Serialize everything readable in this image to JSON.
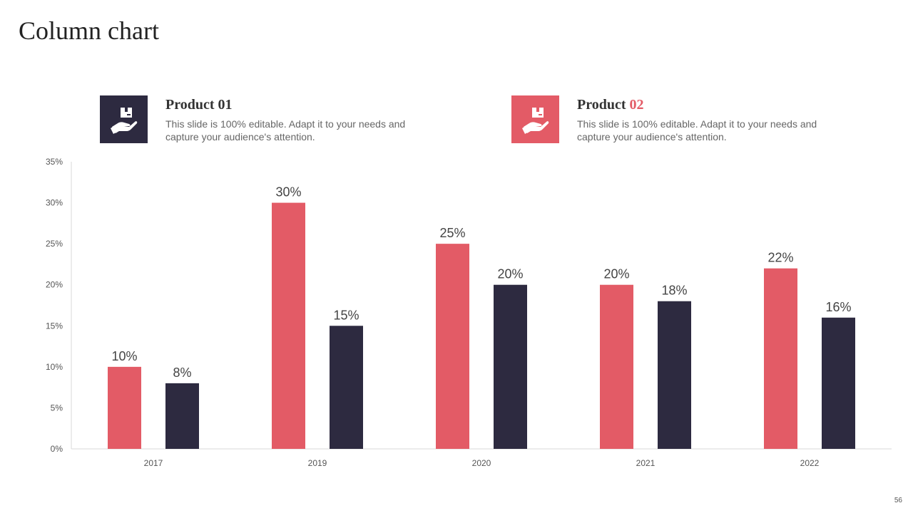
{
  "page": {
    "title": "Column chart",
    "page_number": "56"
  },
  "legend": [
    {
      "title_word": "Product",
      "title_num": "01",
      "description": "This slide is 100% editable. Adapt it to your needs and capture your audience's attention.",
      "icon": "hand-holding-box-icon",
      "color": "#2D2A40",
      "num_color": "#333333"
    },
    {
      "title_word": "Product",
      "title_num": "02",
      "description": "This slide is 100% editable. Adapt it to your needs and capture your audience's attention.",
      "icon": "hand-holding-box-icon",
      "color": "#E35B66",
      "num_color": "#E35B66"
    }
  ],
  "chart_data": {
    "type": "bar",
    "title": "Column chart",
    "categories": [
      "2017",
      "2019",
      "2020",
      "2021",
      "2022"
    ],
    "series": [
      {
        "name": "Product 02",
        "color": "#E35B66",
        "values": [
          10,
          30,
          25,
          20,
          22
        ],
        "labels": [
          "10%",
          "30%",
          "25%",
          "20%",
          "22%"
        ]
      },
      {
        "name": "Product 01",
        "color": "#2D2A40",
        "values": [
          8,
          15,
          20,
          18,
          16
        ],
        "labels": [
          "8%",
          "15%",
          "20%",
          "18%",
          "16%"
        ]
      }
    ],
    "ylim": [
      0,
      35
    ],
    "yticks": [
      0,
      5,
      10,
      15,
      20,
      25,
      30,
      35
    ],
    "ytick_labels": [
      "0%",
      "5%",
      "10%",
      "15%",
      "20%",
      "25%",
      "30%",
      "35%"
    ],
    "xlabel": "",
    "ylabel": "",
    "grid": false
  }
}
